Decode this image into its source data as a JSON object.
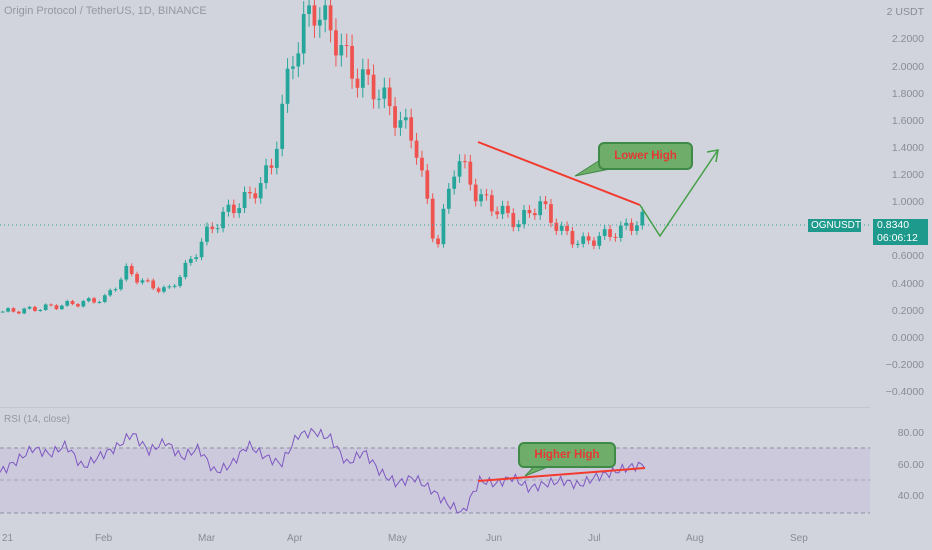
{
  "header": {
    "title": "Origin Protocol / TetherUS, 1D, BINANCE"
  },
  "price_axis": {
    "labels": [
      "2 USDT",
      "2.2000",
      "2.0000",
      "1.8000",
      "1.6000",
      "1.4000",
      "1.2000",
      "1.0000",
      "0.6000",
      "0.4000",
      "0.2000",
      "0.0000",
      "−0.2000",
      "−0.4000"
    ],
    "current_symbol": "OGNUSDT",
    "current_price": "0.8340",
    "countdown": "06:06:12"
  },
  "rsi_panel": {
    "title": "RSI (14, close)",
    "labels": [
      "80.00",
      "60.00",
      "40.00"
    ]
  },
  "time_axis": {
    "labels": [
      "21",
      "Feb",
      "Mar",
      "Apr",
      "May",
      "Jun",
      "Jul",
      "Aug",
      "Sep"
    ]
  },
  "annotations": {
    "price_callout": "Lower High",
    "rsi_callout": "Higher High"
  },
  "colors": {
    "up": "#26a69a",
    "down": "#ef5350",
    "rsi_line": "#7e57c2",
    "trend_line": "#f23a2f",
    "arrow": "#43a047",
    "callout_bg": "#6fae6a"
  },
  "chart_data": {
    "type": "candlestick",
    "title": "Origin Protocol / TetherUS, 1D, BINANCE",
    "x_labels": [
      "21",
      "Feb",
      "Mar",
      "Apr",
      "May",
      "Jun",
      "Jul",
      "Aug",
      "Sep"
    ],
    "y_unit": "USDT",
    "close_series": [
      0.15,
      0.16,
      0.18,
      0.2,
      0.22,
      0.25,
      0.45,
      0.35,
      0.3,
      0.5,
      0.75,
      0.9,
      1.0,
      1.2,
      2.0,
      2.4,
      2.2,
      1.9,
      1.8,
      1.6,
      1.4,
      0.6,
      1.3,
      1.0,
      0.9,
      0.8,
      0.95,
      0.75,
      0.65,
      0.7,
      0.75,
      0.83
    ],
    "current_price": 0.834,
    "rsi": {
      "period": 14,
      "levels": [
        30,
        50,
        70
      ],
      "values": [
        55,
        62,
        70,
        66,
        72,
        58,
        65,
        70,
        79,
        68,
        74,
        64,
        70,
        55,
        60,
        72,
        65,
        60,
        78,
        80,
        76,
        60,
        68,
        55,
        48,
        52,
        45,
        36,
        30,
        50,
        48,
        52,
        45,
        48,
        50,
        47,
        52,
        55,
        58,
        60
      ]
    }
  }
}
